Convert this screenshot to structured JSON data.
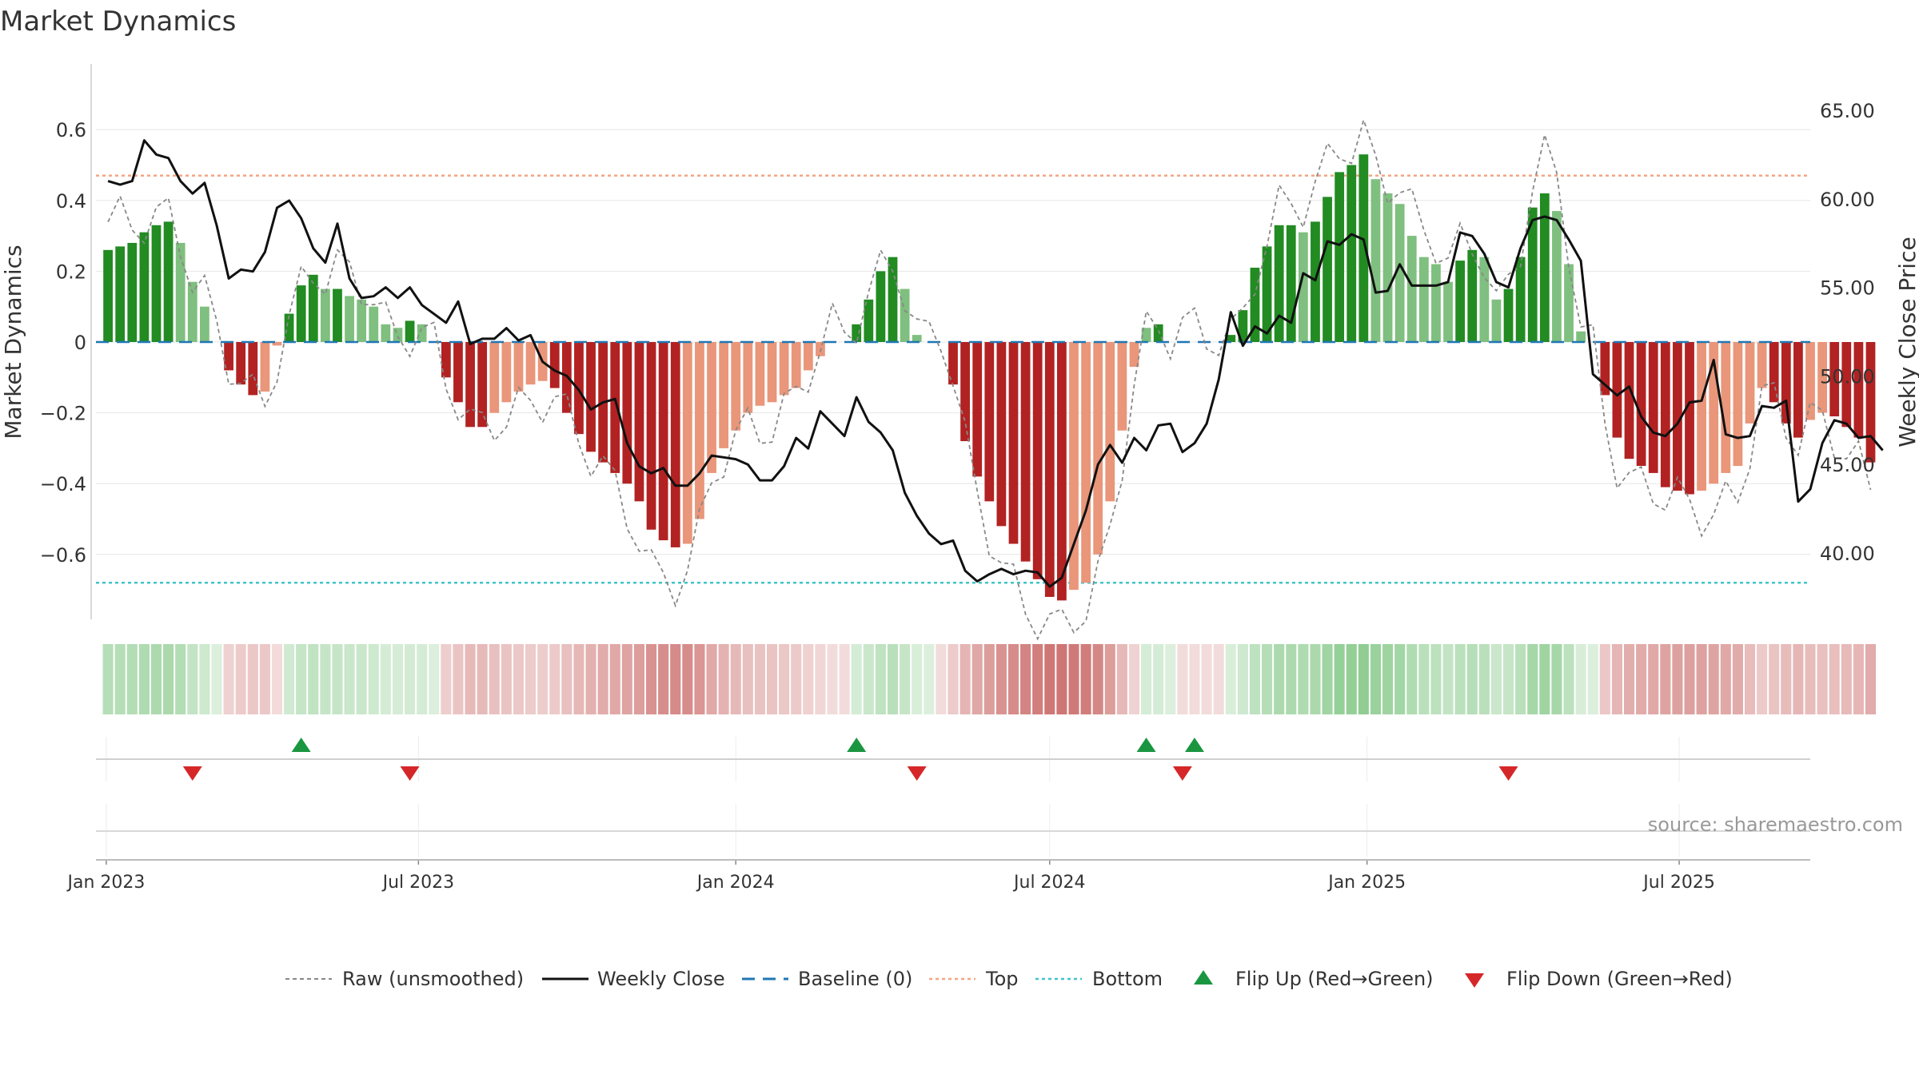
{
  "title": "Market Dynamics",
  "source": "source: sharemaestro.com",
  "colors": {
    "strong_green": "#228b22",
    "light_green": "#7fbf7f",
    "strong_red": "#b22222",
    "light_red": "#e9967a",
    "top_line": "#f4a582",
    "bottom_line": "#40c4c8",
    "baseline": "#1f77b4",
    "close_line": "#111111",
    "raw_line": "#888888",
    "flip_up": "#1a9641",
    "flip_down": "#d62728"
  },
  "legend": {
    "raw": "Raw (unsmoothed)",
    "close": "Weekly Close",
    "baseline": "Baseline (0)",
    "top": "Top",
    "bottom": "Bottom",
    "flip_up": "Flip Up (Red→Green)",
    "flip_down": "Flip Down (Green→Red)"
  },
  "chart_data": {
    "type": "bar",
    "x_start": "2023-01-02",
    "x_interval": "weekly",
    "x_ticks": [
      {
        "date": "2023-01-01",
        "label": "Jan 2023"
      },
      {
        "date": "2023-07-01",
        "label": "Jul 2023"
      },
      {
        "date": "2024-01-01",
        "label": "Jan 2024"
      },
      {
        "date": "2024-07-01",
        "label": "Jul 2024"
      },
      {
        "date": "2025-01-01",
        "label": "Jan 2025"
      },
      {
        "date": "2025-07-01",
        "label": "Jul 2025"
      }
    ],
    "ylabel_left": "Market Dynamics",
    "ylabel_right": "Weekly Close Price",
    "ylim_left": [
      -0.78,
      0.78
    ],
    "ylim_right": [
      35.0,
      67.0
    ],
    "left_ticks": [
      {
        "v": 0.6,
        "label": "0.6"
      },
      {
        "v": 0.4,
        "label": "0.4"
      },
      {
        "v": 0.2,
        "label": "0.2"
      },
      {
        "v": 0.0,
        "label": "0"
      },
      {
        "v": -0.2,
        "label": "−0.2"
      },
      {
        "v": -0.4,
        "label": "−0.4"
      },
      {
        "v": -0.6,
        "label": "−0.6"
      }
    ],
    "right_ticks": [
      {
        "v": 65,
        "label": "65.00"
      },
      {
        "v": 60,
        "label": "60.00"
      },
      {
        "v": 55,
        "label": "55.00"
      },
      {
        "v": 50,
        "label": "50.00"
      },
      {
        "v": 45,
        "label": "45.00"
      },
      {
        "v": 40,
        "label": "40.00"
      }
    ],
    "top_level": 0.47,
    "bottom_level": -0.68,
    "grid": true,
    "legend_position": "bottom",
    "dynamics": [
      0.26,
      0.27,
      0.28,
      0.31,
      0.33,
      0.34,
      0.28,
      0.17,
      0.1,
      0.0,
      -0.08,
      -0.12,
      -0.15,
      -0.14,
      -0.01,
      0.08,
      0.16,
      0.19,
      0.15,
      0.15,
      0.13,
      0.12,
      0.1,
      0.05,
      0.04,
      0.06,
      0.05,
      0.0,
      -0.1,
      -0.17,
      -0.24,
      -0.24,
      -0.2,
      -0.17,
      -0.14,
      -0.12,
      -0.11,
      -0.13,
      -0.2,
      -0.26,
      -0.31,
      -0.34,
      -0.37,
      -0.4,
      -0.45,
      -0.53,
      -0.56,
      -0.58,
      -0.57,
      -0.5,
      -0.37,
      -0.3,
      -0.25,
      -0.2,
      -0.18,
      -0.17,
      -0.15,
      -0.13,
      -0.08,
      -0.04,
      0.0,
      0.0,
      0.05,
      0.12,
      0.2,
      0.24,
      0.15,
      0.02,
      0.0,
      0.0,
      -0.12,
      -0.28,
      -0.38,
      -0.45,
      -0.52,
      -0.57,
      -0.62,
      -0.67,
      -0.72,
      -0.73,
      -0.7,
      -0.68,
      -0.6,
      -0.45,
      -0.25,
      -0.07,
      0.04,
      0.05,
      0.0,
      0.0,
      0.0,
      0.0,
      0.0,
      0.02,
      0.09,
      0.21,
      0.27,
      0.33,
      0.33,
      0.31,
      0.34,
      0.41,
      0.48,
      0.5,
      0.53,
      0.46,
      0.42,
      0.39,
      0.3,
      0.24,
      0.22,
      0.17,
      0.23,
      0.26,
      0.24,
      0.12,
      0.15,
      0.24,
      0.38,
      0.42,
      0.37,
      0.22,
      0.03,
      0.0,
      -0.15,
      -0.27,
      -0.33,
      -0.35,
      -0.37,
      -0.41,
      -0.42,
      -0.43,
      -0.42,
      -0.4,
      -0.37,
      -0.35,
      -0.23,
      -0.13,
      -0.17,
      -0.23,
      -0.27,
      -0.22,
      -0.2,
      -0.21,
      -0.24,
      -0.27,
      -0.34
    ],
    "close": [
      61.0,
      60.8,
      61.0,
      63.3,
      62.5,
      62.3,
      61.0,
      60.3,
      60.9,
      58.5,
      55.5,
      56.0,
      55.9,
      57.0,
      59.5,
      59.9,
      58.9,
      57.2,
      56.4,
      58.6,
      55.5,
      54.4,
      54.5,
      55.0,
      54.4,
      55.0,
      54.0,
      53.5,
      53.0,
      54.2,
      51.8,
      52.1,
      52.1,
      52.7,
      52.0,
      52.3,
      50.8,
      50.3,
      50.0,
      49.2,
      48.1,
      48.5,
      48.7,
      46.2,
      44.9,
      44.5,
      44.8,
      43.8,
      43.8,
      44.5,
      45.5,
      45.4,
      45.3,
      45.0,
      44.1,
      44.1,
      44.9,
      46.5,
      45.9,
      48.0,
      47.3,
      46.6,
      48.8,
      47.4,
      46.8,
      45.8,
      43.4,
      42.1,
      41.1,
      40.5,
      40.7,
      39.0,
      38.4,
      38.8,
      39.1,
      38.8,
      39.0,
      38.9,
      38.1,
      38.6,
      40.5,
      42.4,
      45.0,
      46.1,
      45.1,
      46.5,
      45.8,
      47.2,
      47.3,
      45.7,
      46.2,
      47.3,
      49.8,
      53.6,
      51.7,
      52.8,
      52.4,
      53.4,
      53.0,
      55.8,
      55.4,
      57.6,
      57.4,
      58.0,
      57.7,
      54.7,
      54.8,
      56.3,
      55.1,
      55.1,
      55.1,
      55.3,
      58.1,
      57.9,
      56.9,
      55.3,
      55.0,
      57.2,
      58.8,
      59.0,
      58.8,
      57.7,
      56.5,
      50.1,
      49.5,
      48.9,
      49.4,
      47.7,
      46.8,
      46.6,
      47.3,
      48.5,
      48.6,
      50.9,
      46.7,
      46.5,
      46.6,
      48.3,
      48.2,
      48.6,
      42.9,
      43.6,
      46.2,
      47.5,
      47.3,
      46.5,
      46.6,
      45.8
    ]
  },
  "flips": {
    "up": [
      "2023-04-24",
      "2024-03-11",
      "2024-08-26",
      "2024-09-23"
    ],
    "down": [
      "2023-02-20",
      "2023-06-26",
      "2024-04-15",
      "2024-09-16",
      "2025-03-24"
    ]
  }
}
